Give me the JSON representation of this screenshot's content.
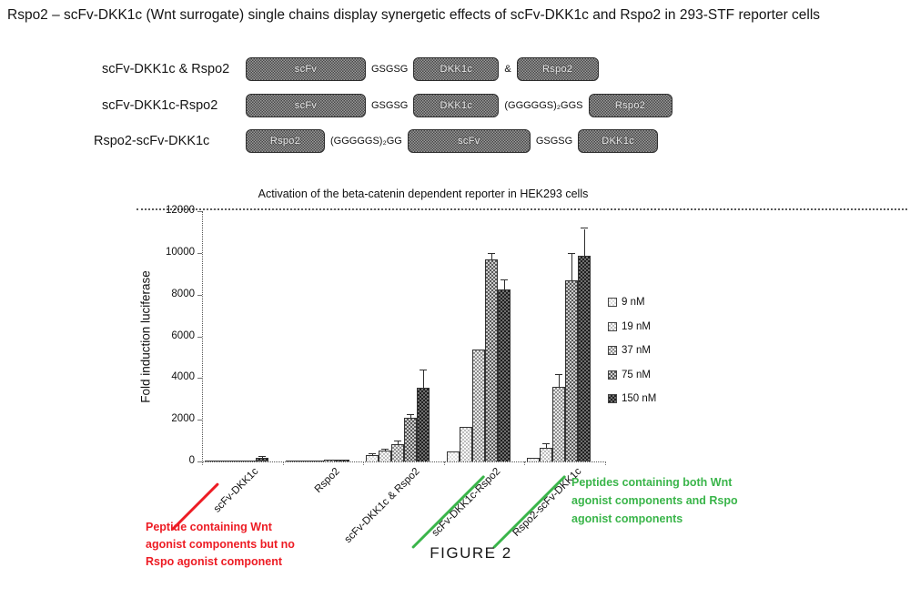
{
  "title": "Rspo2 – scFv-DKK1c (Wnt surrogate) single chains display synergetic effects of scFv-DKK1c and Rspo2 in 293-STF reporter cells",
  "constructs": [
    {
      "label": "scFv-DKK1c & Rspo2",
      "segments": [
        {
          "type": "box",
          "text": "scFv"
        },
        {
          "type": "linker",
          "text": "GSGSG"
        },
        {
          "type": "box",
          "text": "DKK1c"
        },
        {
          "type": "linker",
          "text": "&"
        },
        {
          "type": "box",
          "text": "Rspo2"
        }
      ]
    },
    {
      "label": "scFv-DKK1c-Rspo2",
      "segments": [
        {
          "type": "box",
          "text": "scFv"
        },
        {
          "type": "linker",
          "text": "GSGSG"
        },
        {
          "type": "box",
          "text": "DKK1c"
        },
        {
          "type": "linker",
          "text": "(GGGGGS)₂GGS"
        },
        {
          "type": "box",
          "text": "Rspo2"
        }
      ]
    },
    {
      "label": "Rspo2-scFv-DKK1c",
      "segments": [
        {
          "type": "box",
          "text": "Rspo2"
        },
        {
          "type": "linker",
          "text": "(GGGGGS)₂GG"
        },
        {
          "type": "box",
          "text": "scFv"
        },
        {
          "type": "linker",
          "text": "GSGSG"
        },
        {
          "type": "box",
          "text": "DKK1c"
        }
      ]
    }
  ],
  "chart_data": {
    "type": "bar",
    "title": "Activation of the beta-catenin dependent reporter in HEK293 cells",
    "xlabel": "",
    "ylabel": "Fold induction luciferase",
    "ylim": [
      0,
      12000
    ],
    "yticks": [
      0,
      2000,
      4000,
      6000,
      8000,
      10000,
      12000
    ],
    "grid": false,
    "legend_position": "right",
    "categories": [
      "scFv-DKK1c",
      "Rspo2",
      "scFv-DKK1c & Rspo2",
      "scFv-DKK1c-Rspo2",
      "Rspo2-scFv-DKK1c"
    ],
    "series": [
      {
        "name": "9 nM",
        "values": [
          30,
          40,
          300,
          500,
          180
        ],
        "errors": [
          0,
          0,
          60,
          0,
          0
        ]
      },
      {
        "name": "19 nM",
        "values": [
          30,
          55,
          520,
          1680,
          650
        ],
        "errors": [
          0,
          0,
          60,
          0,
          160
        ]
      },
      {
        "name": "37 nM",
        "values": [
          35,
          60,
          820,
          5350,
          3600
        ],
        "errors": [
          0,
          0,
          140,
          0,
          550
        ]
      },
      {
        "name": "75 nM",
        "values": [
          40,
          70,
          2100,
          9700,
          8700
        ],
        "errors": [
          0,
          0,
          120,
          260,
          1250
        ]
      },
      {
        "name": "150 nM",
        "values": [
          170,
          90,
          3550,
          8250,
          9850
        ],
        "errors": [
          40,
          0,
          820,
          420,
          1300
        ]
      }
    ]
  },
  "category_underlines": [
    {
      "index": 0,
      "color": "#ed1c24"
    },
    {
      "index": 3,
      "color": "#3ab54a"
    },
    {
      "index": 4,
      "color": "#3ab54a"
    }
  ],
  "annotations": {
    "red_note": {
      "text": "Peptide containing Wnt agonist components but no Rspo agonist component",
      "color": "#ed1c24"
    },
    "green_note": {
      "text": "Peptides containing both Wnt agonist components and Rspo agonist components",
      "color": "#3ab54a"
    }
  },
  "figure_caption": "FIGURE 2"
}
